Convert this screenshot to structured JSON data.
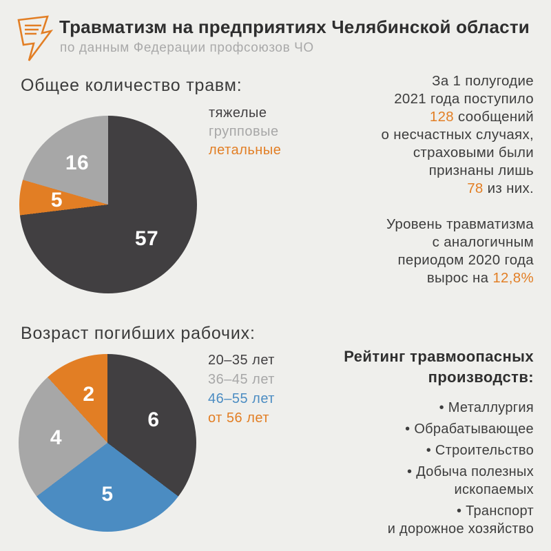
{
  "colors": {
    "background": "#efefec",
    "dark": "#413f41",
    "gray": "#a7a7a7",
    "orange": "#e27e24",
    "blue": "#4b8cc2",
    "title_text": "#2e2e2e",
    "body_text": "#3d3d3d",
    "subtitle_text": "#a9a9a9"
  },
  "header": {
    "title": "Травматизм на предприятиях Челябинской области",
    "subtitle": "по данным Федерации профсоюзов ЧО",
    "icon": "lightning-message-icon"
  },
  "section_injuries": {
    "heading": "Общее количество травм:",
    "legend": [
      {
        "label": "тяжелые",
        "color": "dark"
      },
      {
        "label": "групповые",
        "color": "gray"
      },
      {
        "label": "летальные",
        "color": "orange"
      }
    ]
  },
  "stats_text": {
    "paragraphs": [
      {
        "lines": [
          [
            {
              "t": "За 1 полугодие"
            }
          ],
          [
            {
              "t": "2021 года поступило"
            }
          ],
          [
            {
              "t": "128",
              "hl": true
            },
            {
              "t": " сообщений"
            }
          ],
          [
            {
              "t": "о несчастных случаях,"
            }
          ],
          [
            {
              "t": "страховыми были"
            }
          ],
          [
            {
              "t": "признаны лишь"
            }
          ],
          [
            {
              "t": "78",
              "hl": true
            },
            {
              "t": " из них."
            }
          ]
        ]
      },
      {
        "lines": [
          [
            {
              "t": "Уровень травматизма"
            }
          ],
          [
            {
              "t": "с аналогичным"
            }
          ],
          [
            {
              "t": "периодом 2020 года"
            }
          ],
          [
            {
              "t": "вырос на "
            },
            {
              "t": "12,8%",
              "hl": true
            }
          ]
        ]
      }
    ]
  },
  "section_age": {
    "heading": "Возраст погибших рабочих:",
    "legend": [
      {
        "label": "20–35 лет",
        "color": "dark"
      },
      {
        "label": "36–45 лет",
        "color": "gray"
      },
      {
        "label": "46–55 лет",
        "color": "blue"
      },
      {
        "label": "от 56 лет",
        "color": "orange"
      }
    ]
  },
  "industries": {
    "heading_lines": [
      "Рейтинг травмоопасных",
      "производств:"
    ],
    "bullet": "•",
    "items": [
      [
        "Металлургия"
      ],
      [
        "Обрабатывающее"
      ],
      [
        "Строительство"
      ],
      [
        "Добыча полезных",
        "ископаемых"
      ],
      [
        "Транспорт",
        "и дорожное хозяйство"
      ]
    ]
  },
  "chart_data": [
    {
      "type": "pie",
      "title": "Общее количество травм:",
      "total": 78,
      "start_angle_deg": 0,
      "direction": "clockwise",
      "slices": [
        {
          "label": "тяжелые",
          "value": 57,
          "color": "dark"
        },
        {
          "label": "летальные",
          "value": 5,
          "color": "orange"
        },
        {
          "label": "групповые",
          "value": 16,
          "color": "gray"
        }
      ]
    },
    {
      "type": "pie",
      "title": "Возраст погибших рабочих:",
      "total": 17,
      "start_angle_deg": 0,
      "direction": "clockwise",
      "slices": [
        {
          "label": "20–35 лет",
          "value": 6,
          "color": "dark"
        },
        {
          "label": "46–55 лет",
          "value": 5,
          "color": "blue"
        },
        {
          "label": "36–45 лет",
          "value": 4,
          "color": "gray"
        },
        {
          "label": "от 56 лет",
          "value": 2,
          "color": "orange"
        }
      ]
    }
  ]
}
